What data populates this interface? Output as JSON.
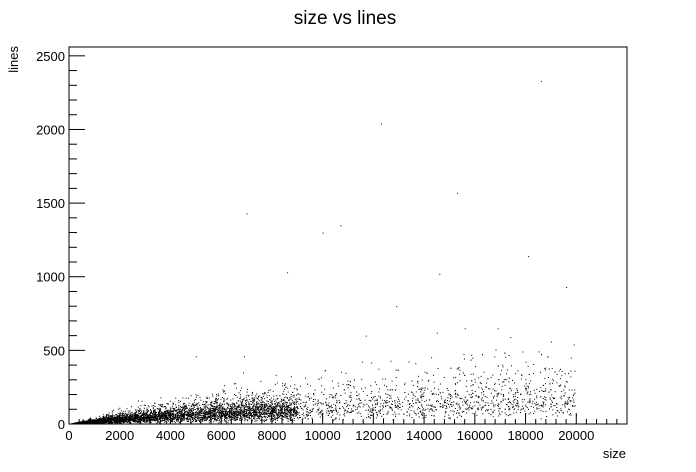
{
  "chart_data": {
    "type": "scatter",
    "title": "size vs lines",
    "xlabel": "size",
    "ylabel": "lines",
    "xlim": [
      0,
      22000
    ],
    "ylim": [
      0,
      2560
    ],
    "x_ticks": [
      0,
      2000,
      4000,
      6000,
      8000,
      10000,
      12000,
      14000,
      16000,
      18000,
      20000
    ],
    "y_ticks": [
      0,
      500,
      1000,
      1500,
      2000,
      2500
    ],
    "grid": false,
    "legend": "none",
    "marker_color": "#000000",
    "notable_points": [
      {
        "x": 18600,
        "y": 2330
      },
      {
        "x": 12300,
        "y": 2040
      },
      {
        "x": 15300,
        "y": 1570
      },
      {
        "x": 7000,
        "y": 1430
      },
      {
        "x": 10700,
        "y": 1350
      },
      {
        "x": 10000,
        "y": 1300
      },
      {
        "x": 18100,
        "y": 1140
      },
      {
        "x": 8600,
        "y": 1030
      },
      {
        "x": 14600,
        "y": 1020
      },
      {
        "x": 19600,
        "y": 930
      },
      {
        "x": 12900,
        "y": 800
      },
      {
        "x": 16900,
        "y": 650
      },
      {
        "x": 15600,
        "y": 650
      },
      {
        "x": 14500,
        "y": 620
      },
      {
        "x": 11700,
        "y": 600
      },
      {
        "x": 17400,
        "y": 590
      },
      {
        "x": 19000,
        "y": 560
      },
      {
        "x": 19900,
        "y": 540
      },
      {
        "x": 5000,
        "y": 460
      },
      {
        "x": 6900,
        "y": 460
      }
    ],
    "bulk_distribution": {
      "x_range": [
        0,
        20000
      ],
      "dense_region_x": [
        0,
        9000
      ],
      "typical_y_at_x": [
        {
          "x": 2000,
          "y": 40
        },
        {
          "x": 5000,
          "y": 80
        },
        {
          "x": 8000,
          "y": 100
        },
        {
          "x": 12000,
          "y": 130
        },
        {
          "x": 16000,
          "y": 170
        },
        {
          "x": 20000,
          "y": 200
        }
      ],
      "approx_upper_envelope": [
        {
          "x": 2000,
          "y": 200
        },
        {
          "x": 5000,
          "y": 300
        },
        {
          "x": 8000,
          "y": 350
        },
        {
          "x": 12000,
          "y": 450
        },
        {
          "x": 16000,
          "y": 500
        },
        {
          "x": 20000,
          "y": 550
        }
      ]
    }
  }
}
